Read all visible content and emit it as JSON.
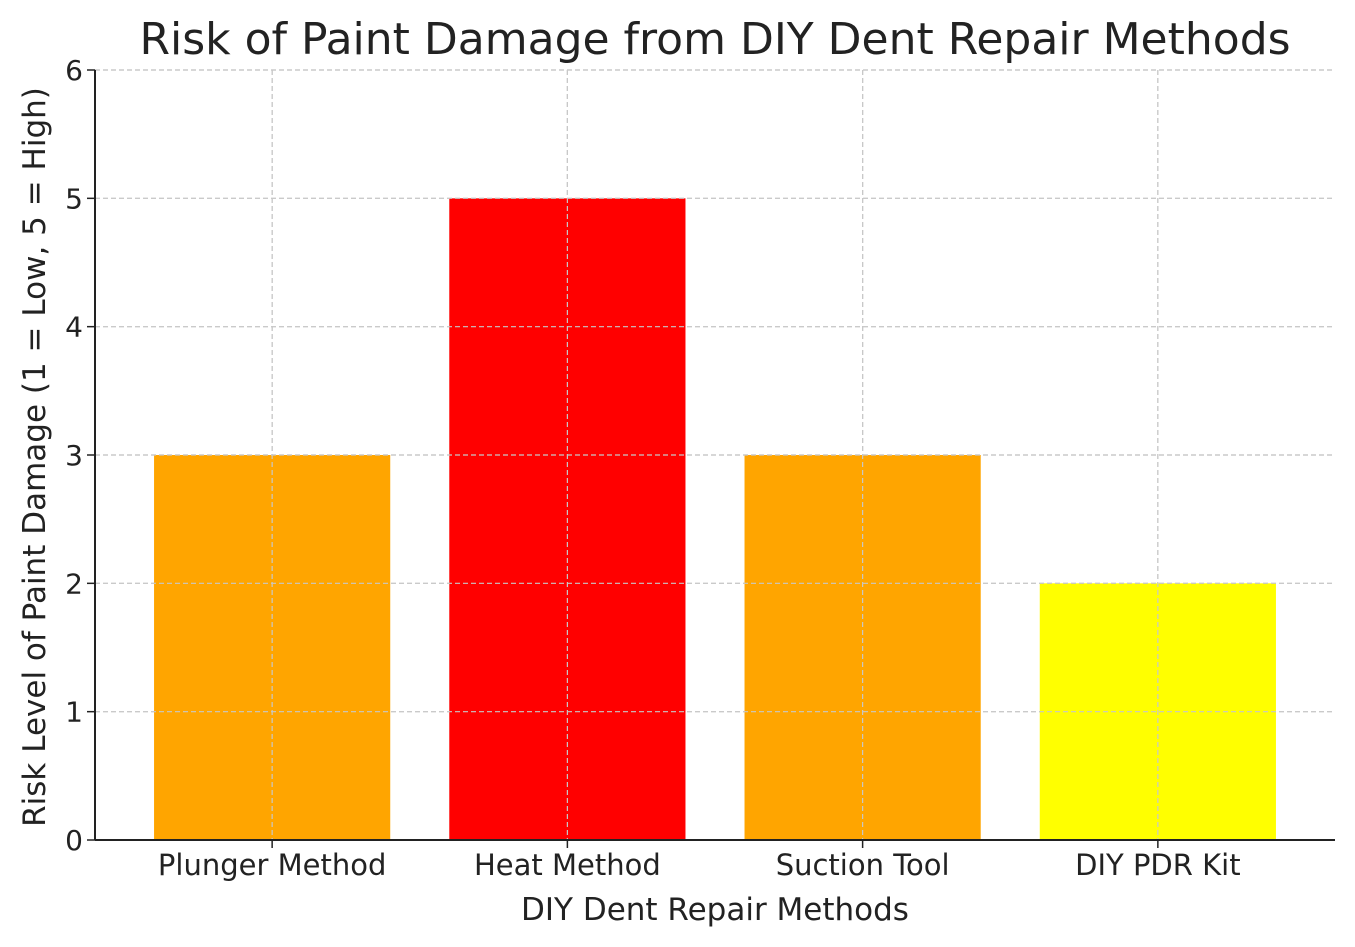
{
  "chart_data": {
    "type": "bar",
    "title": "Risk of Paint Damage from DIY Dent Repair Methods",
    "xlabel": "DIY Dent Repair Methods",
    "ylabel": "Risk Level of Paint Damage (1 = Low, 5 = High)",
    "categories": [
      "Plunger Method",
      "Heat Method",
      "Suction Tool",
      "DIY PDR Kit"
    ],
    "values": [
      3,
      5,
      3,
      2
    ],
    "colors": [
      "#FFA500",
      "#FF0000",
      "#FFA500",
      "#FFFF00"
    ],
    "ylim": [
      0,
      6
    ],
    "yticks": [
      "0",
      "1",
      "2",
      "3",
      "4",
      "5",
      "6"
    ],
    "grid": true
  }
}
